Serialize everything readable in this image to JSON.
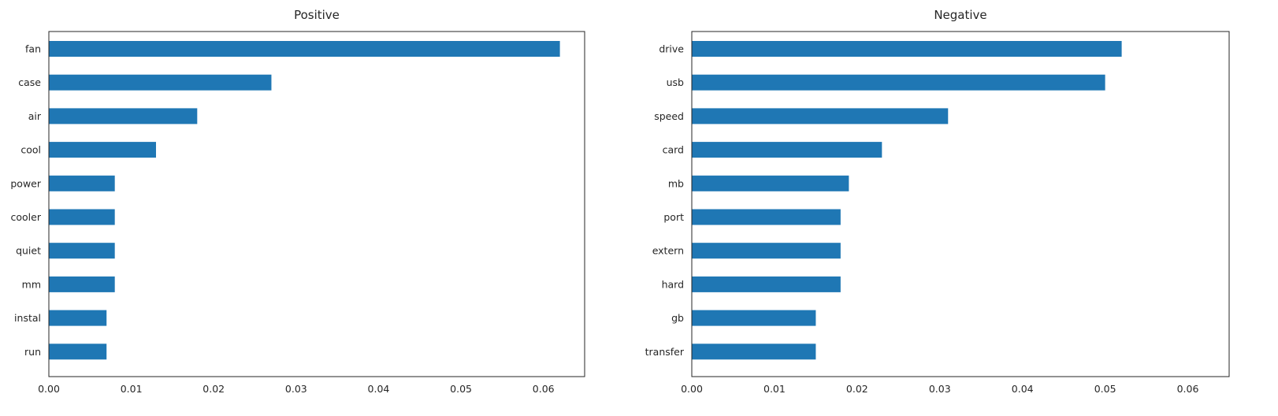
{
  "chart_data": [
    {
      "type": "bar",
      "orientation": "horizontal",
      "title": "Positive",
      "xlabel": "",
      "ylabel": "",
      "categories": [
        "fan",
        "case",
        "air",
        "cool",
        "power",
        "cooler",
        "quiet",
        "mm",
        "instal",
        "run"
      ],
      "values": [
        0.062,
        0.027,
        0.018,
        0.013,
        0.008,
        0.008,
        0.008,
        0.008,
        0.007,
        0.007
      ],
      "xlim": [
        0,
        0.065
      ],
      "xticks": [
        "0.00",
        "0.01",
        "0.02",
        "0.03",
        "0.04",
        "0.05",
        "0.06"
      ],
      "grid": false,
      "color": "#1f77b4"
    },
    {
      "type": "bar",
      "orientation": "horizontal",
      "title": "Negative",
      "xlabel": "",
      "ylabel": "",
      "categories": [
        "drive",
        "usb",
        "speed",
        "card",
        "mb",
        "port",
        "extern",
        "hard",
        "gb",
        "transfer"
      ],
      "values": [
        0.052,
        0.05,
        0.031,
        0.023,
        0.019,
        0.018,
        0.018,
        0.018,
        0.015,
        0.015
      ],
      "xlim": [
        0,
        0.065
      ],
      "xticks": [
        "0.00",
        "0.01",
        "0.02",
        "0.03",
        "0.04",
        "0.05",
        "0.06"
      ],
      "grid": false,
      "color": "#1f77b4"
    }
  ]
}
